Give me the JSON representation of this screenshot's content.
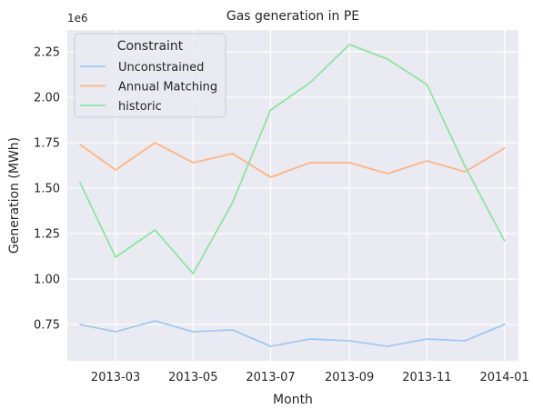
{
  "chart_data": {
    "type": "line",
    "title": "Gas generation in PE",
    "xlabel": "Month",
    "ylabel": "Generation (MWh)",
    "y_offset_label": "1e6",
    "legend_title": "Constraint",
    "legend_position": "top-left",
    "grid": true,
    "x": [
      "2013-02-01",
      "2013-03-01",
      "2013-04-01",
      "2013-05-01",
      "2013-06-01",
      "2013-07-01",
      "2013-08-01",
      "2013-09-01",
      "2013-10-01",
      "2013-11-01",
      "2013-12-01",
      "2014-01-01"
    ],
    "xlim": [
      "2013-01-22",
      "2014-01-12"
    ],
    "ylim": [
      0.55,
      2.37
    ],
    "x_ticks": [
      {
        "date": "2013-03-01",
        "label": "2013-03"
      },
      {
        "date": "2013-05-01",
        "label": "2013-05"
      },
      {
        "date": "2013-07-01",
        "label": "2013-07"
      },
      {
        "date": "2013-09-01",
        "label": "2013-09"
      },
      {
        "date": "2013-11-01",
        "label": "2013-11"
      },
      {
        "date": "2014-01-01",
        "label": "2014-01"
      }
    ],
    "y_ticks": [
      {
        "value": 0.75,
        "label": "0.75"
      },
      {
        "value": 1.0,
        "label": "1.00"
      },
      {
        "value": 1.25,
        "label": "1.25"
      },
      {
        "value": 1.5,
        "label": "1.50"
      },
      {
        "value": 1.75,
        "label": "1.75"
      },
      {
        "value": 2.0,
        "label": "2.00"
      },
      {
        "value": 2.25,
        "label": "2.25"
      }
    ],
    "series": [
      {
        "name": "Unconstrained",
        "color": "#a1c9f4",
        "values": [
          0.75,
          0.71,
          0.77,
          0.71,
          0.72,
          0.63,
          0.67,
          0.66,
          0.63,
          0.67,
          0.66,
          0.75
        ]
      },
      {
        "name": "Annual Matching",
        "color": "#ffb482",
        "values": [
          1.74,
          1.6,
          1.75,
          1.64,
          1.69,
          1.56,
          1.64,
          1.64,
          1.58,
          1.65,
          1.59,
          1.72
        ]
      },
      {
        "name": "historic",
        "color": "#8de5a1",
        "values": [
          1.53,
          1.12,
          1.27,
          1.03,
          1.42,
          1.93,
          2.08,
          2.29,
          2.21,
          2.07,
          1.62,
          1.21
        ]
      }
    ]
  }
}
